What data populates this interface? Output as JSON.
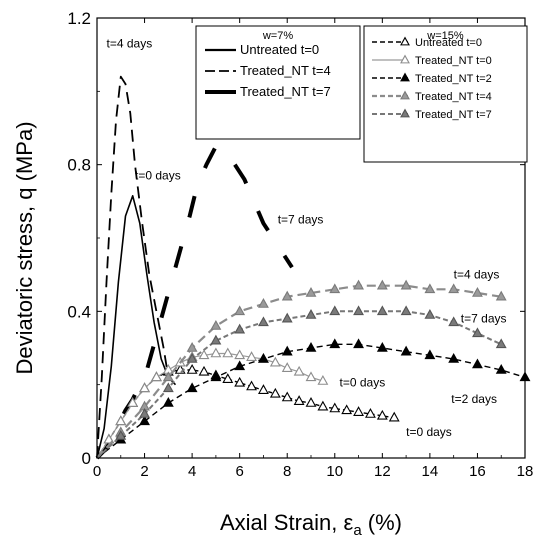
{
  "chart_data": {
    "type": "line",
    "xlabel": "Axial Strain, ε",
    "xlabel_sub": "a",
    "xlabel_unit": " (%)",
    "ylabel": "Deviatoric stress, q (MPa)",
    "xlim": [
      0,
      18
    ],
    "ylim": [
      0,
      1.2
    ],
    "xticks": [
      "0",
      "2",
      "4",
      "6",
      "8",
      "10",
      "12",
      "14",
      "16",
      "18"
    ],
    "yticks": [
      "0",
      "0.4",
      "0.8",
      "1.2"
    ],
    "xtick_values": [
      0,
      2,
      4,
      6,
      8,
      10,
      12,
      14,
      16,
      18
    ],
    "ytick_values": [
      0,
      0.4,
      0.8,
      1.2
    ],
    "legends": [
      {
        "title": "w=7%",
        "entries": [
          {
            "label": "Untreated t=0",
            "style": "solid"
          },
          {
            "label": "Treated_NT t=4",
            "style": "dashed"
          },
          {
            "label": "Treated_NT t=7",
            "style": "thick"
          }
        ]
      },
      {
        "title": "w=15%",
        "entries": [
          {
            "label": "Untreated t=0",
            "style": "black-open-triangle"
          },
          {
            "label": "Treated_NT t=0",
            "style": "grey-open-triangle"
          },
          {
            "label": "Treated_NT t=2",
            "style": "black-filled-triangle"
          },
          {
            "label": "Treated_NT t=4",
            "style": "grey-dashed-triangle"
          },
          {
            "label": "Treated_NT t=7",
            "style": "grey-filled-triangle"
          }
        ]
      }
    ],
    "annotations": [
      {
        "text": "t=4 days",
        "x": 0.4,
        "y": 1.12
      },
      {
        "text": "t=0 days",
        "x": 1.6,
        "y": 0.76
      },
      {
        "text": "t=7 days",
        "x": 7.6,
        "y": 0.64
      },
      {
        "text": "t=4 days",
        "x": 15.0,
        "y": 0.49
      },
      {
        "text": "t=7 days",
        "x": 15.3,
        "y": 0.37
      },
      {
        "text": "t=0 days",
        "x": 10.2,
        "y": 0.195
      },
      {
        "text": "t=2 days",
        "x": 14.9,
        "y": 0.15
      },
      {
        "text": "t=0 days",
        "x": 13.0,
        "y": 0.06
      }
    ],
    "series": [
      {
        "style": "solid",
        "x": [
          0,
          0.3,
          0.6,
          0.9,
          1.2,
          1.5,
          1.8,
          2.1,
          2.4,
          2.7,
          3.0,
          3.3
        ],
        "y": [
          0,
          0.08,
          0.25,
          0.48,
          0.66,
          0.715,
          0.64,
          0.5,
          0.37,
          0.27,
          0.22,
          0.2
        ]
      },
      {
        "style": "dashed",
        "x": [
          0,
          0.2,
          0.4,
          0.6,
          0.8,
          1.0,
          1.2,
          1.4,
          1.6,
          1.9,
          2.2,
          2.5,
          2.8,
          3.0
        ],
        "y": [
          0,
          0.22,
          0.48,
          0.72,
          0.92,
          1.04,
          1.02,
          0.94,
          0.8,
          0.64,
          0.5,
          0.4,
          0.3,
          0.22
        ]
      },
      {
        "style": "thick",
        "x": [
          0,
          0.3,
          0.6,
          0.9,
          1.2,
          1.5,
          1.8,
          2.1,
          2.4,
          2.7,
          3.0,
          3.3,
          3.6,
          3.9,
          4.2,
          4.6,
          5.0,
          5.4,
          5.8,
          6.2,
          6.6,
          7.0,
          7.4,
          7.8,
          8.2
        ],
        "y": [
          0,
          0.02,
          0.05,
          0.09,
          0.13,
          0.16,
          0.2,
          0.24,
          0.31,
          0.38,
          0.45,
          0.52,
          0.59,
          0.66,
          0.74,
          0.8,
          0.85,
          0.84,
          0.8,
          0.76,
          0.7,
          0.64,
          0.6,
          0.56,
          0.52
        ]
      },
      {
        "style": "black-open-triangle",
        "x": [
          0,
          0.5,
          1,
          1.5,
          2,
          2.5,
          3,
          3.5,
          4,
          4.5,
          5,
          5.5,
          6,
          6.5,
          7,
          7.5,
          8,
          8.5,
          9,
          9.5,
          10,
          10.5,
          11,
          11.5,
          12,
          12.5
        ],
        "y": [
          0,
          0.05,
          0.1,
          0.15,
          0.19,
          0.22,
          0.235,
          0.24,
          0.24,
          0.235,
          0.225,
          0.215,
          0.205,
          0.195,
          0.185,
          0.175,
          0.165,
          0.155,
          0.15,
          0.14,
          0.135,
          0.13,
          0.125,
          0.12,
          0.115,
          0.11
        ]
      },
      {
        "style": "grey-open-triangle",
        "x": [
          0,
          0.5,
          1,
          1.5,
          2,
          2.5,
          3,
          3.5,
          4,
          4.5,
          5,
          5.5,
          6,
          6.5,
          7,
          7.5,
          8,
          8.5,
          9,
          9.5
        ],
        "y": [
          0,
          0.05,
          0.1,
          0.15,
          0.19,
          0.22,
          0.24,
          0.26,
          0.275,
          0.28,
          0.285,
          0.285,
          0.28,
          0.275,
          0.27,
          0.26,
          0.245,
          0.235,
          0.22,
          0.21
        ]
      },
      {
        "style": "black-filled-triangle",
        "x": [
          0,
          1,
          2,
          3,
          4,
          5,
          6,
          7,
          8,
          9,
          10,
          11,
          12,
          13,
          14,
          15,
          16,
          17,
          18
        ],
        "y": [
          0,
          0.05,
          0.1,
          0.15,
          0.19,
          0.22,
          0.25,
          0.27,
          0.29,
          0.3,
          0.31,
          0.31,
          0.3,
          0.29,
          0.28,
          0.27,
          0.255,
          0.24,
          0.22
        ]
      },
      {
        "style": "grey-dashed-triangle",
        "x": [
          0,
          1,
          2,
          3,
          4,
          5,
          6,
          7,
          8,
          9,
          10,
          11,
          12,
          13,
          14,
          15,
          16,
          17
        ],
        "y": [
          0,
          0.07,
          0.14,
          0.22,
          0.3,
          0.36,
          0.4,
          0.42,
          0.44,
          0.45,
          0.46,
          0.47,
          0.47,
          0.47,
          0.46,
          0.46,
          0.45,
          0.44
        ]
      },
      {
        "style": "grey-filled-triangle",
        "x": [
          0,
          1,
          2,
          3,
          4,
          5,
          6,
          7,
          8,
          9,
          10,
          11,
          12,
          13,
          14,
          15,
          16,
          17
        ],
        "y": [
          0,
          0.06,
          0.12,
          0.19,
          0.27,
          0.32,
          0.35,
          0.37,
          0.38,
          0.39,
          0.4,
          0.4,
          0.4,
          0.4,
          0.39,
          0.37,
          0.34,
          0.31
        ]
      }
    ]
  }
}
